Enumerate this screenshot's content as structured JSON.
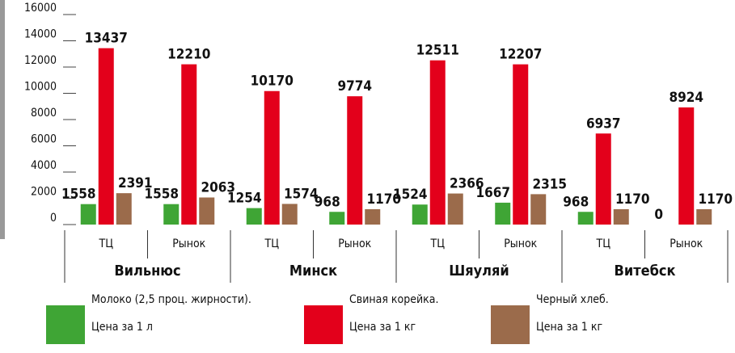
{
  "chart_data": {
    "type": "bar",
    "categories": [
      "ТЦ",
      "Рынок",
      "ТЦ",
      "Рынок",
      "ТЦ",
      "Рынок",
      "ТЦ",
      "Рынок"
    ],
    "groups": [
      "Вильнюс",
      "Минск",
      "Шяуляй",
      "Витебск"
    ],
    "series": [
      {
        "name": "Молоко (2,5 проц. жирности).",
        "sublabel": "Цена за 1 л",
        "color": "#3fa535",
        "values": [
          1558,
          1558,
          1254,
          968,
          1524,
          1667,
          968,
          0
        ]
      },
      {
        "name": "Свиная корейка.",
        "sublabel": "Цена за 1 кг",
        "color": "#e3001b",
        "values": [
          13437,
          12210,
          10170,
          9774,
          12511,
          12207,
          6937,
          8924
        ]
      },
      {
        "name": "Черный хлеб.",
        "sublabel": "Цена за 1 кг",
        "color": "#9b6b4b",
        "values": [
          2391,
          2063,
          1574,
          1170,
          2366,
          2315,
          1170,
          1170
        ]
      }
    ],
    "ylim": [
      0,
      16000
    ],
    "yticks": [
      0,
      2000,
      4000,
      6000,
      8000,
      10000,
      12000,
      14000,
      16000
    ]
  }
}
